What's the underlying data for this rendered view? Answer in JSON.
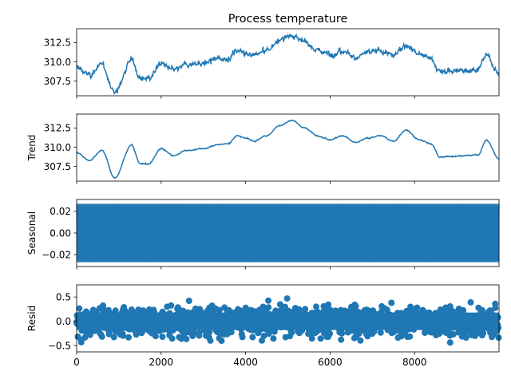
{
  "title": "Process temperature",
  "series_color": "#1f77b4",
  "chart_data": [
    {
      "type": "line",
      "name": "observed",
      "ylabel": "",
      "xlim": [
        0,
        9999
      ],
      "ylim": [
        305.6,
        314.3
      ],
      "yticks": [
        307.5,
        310.0,
        312.5
      ],
      "ytick_labels": [
        "307.5",
        "310.0",
        "312.5"
      ],
      "x": [
        0,
        300,
        600,
        900,
        1300,
        1500,
        1700,
        2000,
        2300,
        2600,
        3000,
        3300,
        3600,
        3800,
        4000,
        4200,
        4500,
        4800,
        5100,
        5400,
        5700,
        6000,
        6300,
        6600,
        6900,
        7200,
        7500,
        7800,
        8100,
        8400,
        8600,
        8800,
        9200,
        9500,
        9700,
        9999
      ],
      "y": [
        309.3,
        308.3,
        309.6,
        306.0,
        310.3,
        307.9,
        307.8,
        309.8,
        308.9,
        309.6,
        309.8,
        310.3,
        310.5,
        311.5,
        311.2,
        310.8,
        311.5,
        312.8,
        313.5,
        312.5,
        311.5,
        311.0,
        311.5,
        310.6,
        311.2,
        311.5,
        310.8,
        312.2,
        311.0,
        310.4,
        308.7,
        308.8,
        308.9,
        309.0,
        310.9,
        308.5
      ],
      "noise": 0.25
    },
    {
      "type": "line",
      "name": "trend",
      "ylabel": "Trend",
      "xlim": [
        0,
        9999
      ],
      "ylim": [
        305.6,
        314.3
      ],
      "yticks": [
        307.5,
        310.0,
        312.5
      ],
      "ytick_labels": [
        "307.5",
        "310.0",
        "312.5"
      ],
      "x": [
        0,
        300,
        600,
        900,
        1300,
        1500,
        1700,
        2000,
        2300,
        2600,
        3000,
        3300,
        3600,
        3800,
        4000,
        4200,
        4500,
        4800,
        5100,
        5400,
        5700,
        6000,
        6300,
        6600,
        6900,
        7200,
        7500,
        7800,
        8100,
        8400,
        8600,
        8800,
        9200,
        9500,
        9700,
        9999
      ],
      "y": [
        309.3,
        308.3,
        309.6,
        306.0,
        310.3,
        307.9,
        307.8,
        309.8,
        308.9,
        309.6,
        309.8,
        310.3,
        310.5,
        311.5,
        311.2,
        310.8,
        311.5,
        312.8,
        313.5,
        312.5,
        311.5,
        311.0,
        311.5,
        310.6,
        311.2,
        311.5,
        310.8,
        312.2,
        311.0,
        310.4,
        308.7,
        308.8,
        308.9,
        309.0,
        310.9,
        308.5
      ],
      "noise": 0.05
    },
    {
      "type": "line",
      "name": "seasonal",
      "ylabel": "Seasonal",
      "xlim": [
        0,
        9999
      ],
      "ylim": [
        -0.031,
        0.031
      ],
      "yticks": [
        -0.02,
        0.0,
        0.02
      ],
      "ytick_labels": [
        "−0.02",
        "0.00",
        "0.02"
      ],
      "amplitude": 0.027,
      "period": 24
    },
    {
      "type": "scatter",
      "name": "resid",
      "ylabel": "Resid",
      "xlim": [
        0,
        9999
      ],
      "ylim": [
        -0.63,
        0.75
      ],
      "yticks": [
        -0.5,
        0.0,
        0.5
      ],
      "ytick_labels": [
        "−0.5",
        "0.0",
        "0.5"
      ],
      "spread": 0.33
    }
  ],
  "xaxis": {
    "ticks": [
      0,
      2000,
      4000,
      6000,
      8000
    ],
    "tick_labels": [
      "0",
      "2000",
      "4000",
      "6000",
      "8000"
    ]
  }
}
